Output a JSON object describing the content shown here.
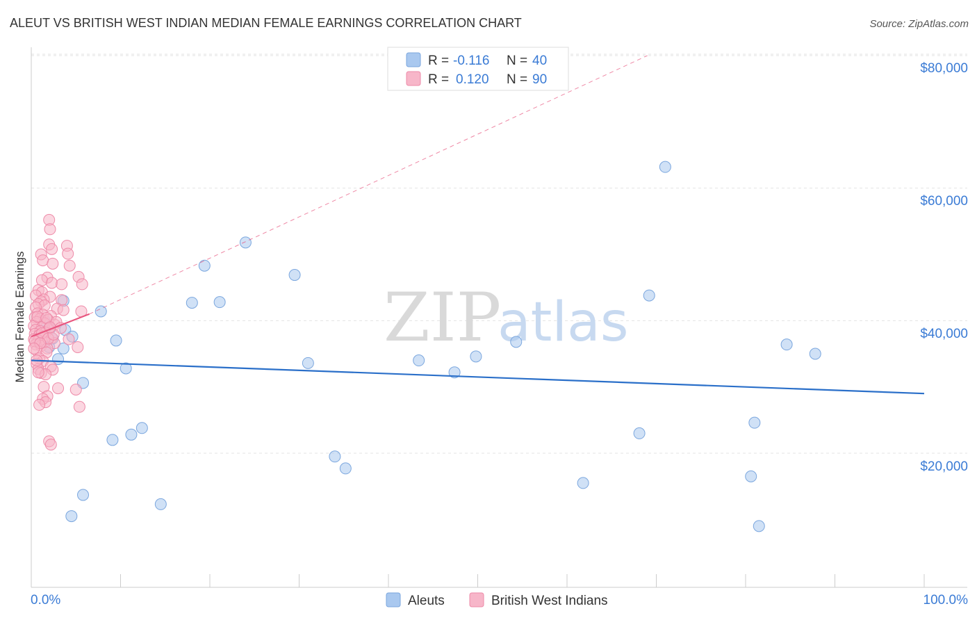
{
  "chart_data": {
    "type": "scatter",
    "title": "ALEUT VS BRITISH WEST INDIAN MEDIAN FEMALE EARNINGS CORRELATION CHART",
    "source": "Source: ZipAtlas.com",
    "xlabel": "",
    "ylabel": "Median Female Earnings",
    "x_tick_labels": [
      "0.0%",
      "100.0%"
    ],
    "y_tick_labels": [
      "$20,000",
      "$40,000",
      "$60,000",
      "$80,000"
    ],
    "y_ticks": [
      20000,
      40000,
      60000,
      80000
    ],
    "xlim": [
      0,
      100
    ],
    "ylim": [
      2000,
      83000
    ],
    "grid": true,
    "watermark": {
      "zip": "ZIP",
      "atlas": "atlas"
    },
    "legend": {
      "placement": "top-center",
      "rows": [
        {
          "r_label": "R =",
          "r_value": "-0.116",
          "n_label": "N =",
          "n_value": "40"
        },
        {
          "r_label": "R =",
          "r_value": "0.120",
          "n_label": "N =",
          "n_value": "90"
        }
      ]
    },
    "series": [
      {
        "name": "Aleuts",
        "color": "#a9c8ef",
        "edge": "#7aa6de",
        "trend_color": "#2a6fc9",
        "trend": {
          "x0": 0,
          "y0": 34000,
          "x1": 100,
          "y1": 29000
        },
        "points": [
          [
            2.1,
            38800
          ],
          [
            3.6,
            35800
          ],
          [
            3.8,
            38600
          ],
          [
            4.6,
            37600
          ],
          [
            5.8,
            30600
          ],
          [
            7.8,
            41400
          ],
          [
            9.5,
            37000
          ],
          [
            10.6,
            32800
          ],
          [
            12.4,
            23800
          ],
          [
            14.5,
            12300
          ],
          [
            18.0,
            42700
          ],
          [
            19.4,
            48300
          ],
          [
            21.1,
            42800
          ],
          [
            24.0,
            51800
          ],
          [
            29.5,
            46900
          ],
          [
            31.0,
            33600
          ],
          [
            34.0,
            19500
          ],
          [
            35.2,
            17700
          ],
          [
            43.4,
            34000
          ],
          [
            47.4,
            32200
          ],
          [
            49.8,
            34600
          ],
          [
            54.3,
            36800
          ],
          [
            61.8,
            15500
          ],
          [
            68.1,
            23000
          ],
          [
            69.2,
            43800
          ],
          [
            71.0,
            63200
          ],
          [
            80.6,
            16500
          ],
          [
            81.0,
            24600
          ],
          [
            81.5,
            9000
          ],
          [
            84.6,
            36400
          ],
          [
            87.8,
            35000
          ],
          [
            2.4,
            37300
          ],
          [
            3.6,
            43000
          ],
          [
            4.5,
            10500
          ],
          [
            5.8,
            13700
          ],
          [
            9.1,
            22000
          ],
          [
            11.2,
            22800
          ],
          [
            1.5,
            40000
          ],
          [
            2.0,
            36000
          ],
          [
            3.0,
            34200
          ]
        ]
      },
      {
        "name": "British West Indians",
        "color": "#f7b6c9",
        "edge": "#ee8aa8",
        "trend_color": "#e8557e",
        "trend": {
          "x0": 0,
          "y0": 37600,
          "x1": 6.5,
          "y1": 41000
        },
        "trend_ext": {
          "x0": 6.5,
          "y0": 41000,
          "x1": 69,
          "y1": 80000
        },
        "points": [
          [
            2.0,
            55200
          ],
          [
            2.1,
            53800
          ],
          [
            4.0,
            51300
          ],
          [
            2.0,
            51500
          ],
          [
            2.3,
            50800
          ],
          [
            1.1,
            50000
          ],
          [
            4.1,
            50100
          ],
          [
            1.3,
            49100
          ],
          [
            2.4,
            48600
          ],
          [
            4.3,
            48300
          ],
          [
            1.8,
            46500
          ],
          [
            5.3,
            46600
          ],
          [
            1.2,
            46100
          ],
          [
            2.3,
            45700
          ],
          [
            3.4,
            45500
          ],
          [
            5.7,
            45500
          ],
          [
            0.8,
            44600
          ],
          [
            1.2,
            44300
          ],
          [
            0.5,
            43800
          ],
          [
            2.1,
            43600
          ],
          [
            1.4,
            43200
          ],
          [
            1.1,
            42900
          ],
          [
            3.4,
            43100
          ],
          [
            0.8,
            42500
          ],
          [
            1.5,
            42300
          ],
          [
            0.5,
            42000
          ],
          [
            2.9,
            41800
          ],
          [
            3.6,
            41600
          ],
          [
            5.6,
            41400
          ],
          [
            0.7,
            41100
          ],
          [
            1.3,
            40900
          ],
          [
            2.2,
            40700
          ],
          [
            0.4,
            40500
          ],
          [
            1.0,
            40300
          ],
          [
            1.9,
            40100
          ],
          [
            0.6,
            39800
          ],
          [
            1.5,
            39600
          ],
          [
            2.6,
            39400
          ],
          [
            0.3,
            39200
          ],
          [
            1.2,
            39000
          ],
          [
            2.0,
            38800
          ],
          [
            0.5,
            38600
          ],
          [
            1.0,
            38400
          ],
          [
            1.6,
            38200
          ],
          [
            0.4,
            38000
          ],
          [
            0.9,
            37800
          ],
          [
            1.4,
            37600
          ],
          [
            2.3,
            37400
          ],
          [
            0.3,
            37200
          ],
          [
            0.8,
            37000
          ],
          [
            1.5,
            36800
          ],
          [
            2.6,
            36600
          ],
          [
            0.5,
            36400
          ],
          [
            1.1,
            36200
          ],
          [
            5.2,
            36000
          ],
          [
            1.8,
            35800
          ],
          [
            0.6,
            35500
          ],
          [
            1.7,
            35200
          ],
          [
            0.9,
            34300
          ],
          [
            1.3,
            33900
          ],
          [
            0.6,
            33500
          ],
          [
            2.2,
            33100
          ],
          [
            0.8,
            32700
          ],
          [
            2.4,
            32600
          ],
          [
            1.1,
            32100
          ],
          [
            1.6,
            31900
          ],
          [
            1.4,
            30000
          ],
          [
            3.0,
            29800
          ],
          [
            5.0,
            29600
          ],
          [
            1.8,
            28600
          ],
          [
            1.3,
            28200
          ],
          [
            1.6,
            27700
          ],
          [
            0.9,
            27300
          ],
          [
            5.4,
            27000
          ],
          [
            2.0,
            21800
          ],
          [
            2.2,
            21300
          ],
          [
            0.7,
            40600
          ],
          [
            1.2,
            38100
          ],
          [
            2.8,
            39800
          ],
          [
            0.4,
            36900
          ],
          [
            1.9,
            37300
          ],
          [
            0.6,
            34000
          ],
          [
            3.3,
            38900
          ],
          [
            2.5,
            37900
          ],
          [
            1.0,
            36600
          ],
          [
            0.3,
            35800
          ],
          [
            1.7,
            40400
          ],
          [
            4.2,
            37200
          ],
          [
            0.8,
            32200
          ],
          [
            2.1,
            39000
          ]
        ]
      }
    ]
  }
}
